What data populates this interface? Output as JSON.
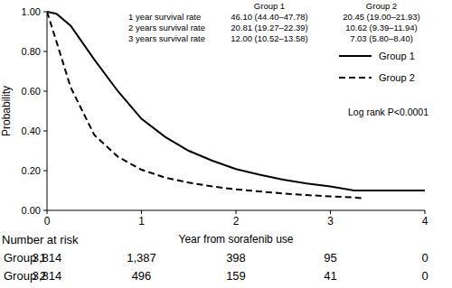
{
  "chart_data": {
    "type": "line",
    "x_label": "Year from sorafenib use",
    "y_label": "Probability",
    "annotation": "Log rank P<0.0001",
    "x": [
      0,
      0.1,
      0.25,
      0.5,
      0.75,
      1,
      1.25,
      1.5,
      1.75,
      2,
      2.25,
      2.5,
      2.75,
      3,
      3.25,
      3.35,
      3.5,
      4
    ],
    "series": [
      {
        "name": "Group 1",
        "color": "#000000",
        "line_style": "solid",
        "values": [
          1.0,
          0.99,
          0.93,
          0.76,
          0.6,
          0.461,
          0.37,
          0.3,
          0.25,
          0.208,
          0.18,
          0.155,
          0.135,
          0.12,
          0.1,
          0.1,
          0.1,
          0.1
        ]
      },
      {
        "name": "Group 2",
        "color": "#000000",
        "line_style": "dashed",
        "values": [
          1.0,
          0.85,
          0.62,
          0.38,
          0.27,
          0.2045,
          0.165,
          0.14,
          0.12,
          0.106,
          0.095,
          0.085,
          0.077,
          0.07,
          0.065,
          0.06,
          null,
          null
        ]
      }
    ],
    "xlim": [
      0,
      4
    ],
    "xticks": [
      0,
      1,
      2,
      3,
      4
    ],
    "ylim": [
      0,
      1
    ],
    "yticks": [
      {
        "value": 0,
        "label": "0.00"
      },
      {
        "value": 0.2,
        "label": "0.20"
      },
      {
        "value": 0.4,
        "label": "0.40"
      },
      {
        "value": 0.6,
        "label": "0.60"
      },
      {
        "value": 0.8,
        "label": "0.80"
      },
      {
        "value": 1,
        "label": "1.00"
      }
    ],
    "legend": "top-right",
    "survival_table": {
      "columns": [
        "Group 1",
        "Group 2"
      ],
      "rows": [
        {
          "label": "1 year survival rate",
          "values": [
            "46.10 (44.40–47.78)",
            "20.45 (19.00–21.93)"
          ]
        },
        {
          "label": "2 years survival rate",
          "values": [
            "20.81 (19.27–22.39)",
            "10.62 (9.39–11.94)"
          ]
        },
        {
          "label": "3 years survival rate",
          "values": [
            "12.00 (10.52–13.58)",
            "7.03 (5.80–8.40)"
          ]
        }
      ]
    },
    "risk_table": {
      "title": "Number at risk",
      "x": [
        0,
        1,
        2,
        3,
        4
      ],
      "rows": [
        {
          "name": "Group 1",
          "values": [
            "3,814",
            "1,387",
            "398",
            "95",
            "0"
          ]
        },
        {
          "name": "Group 2",
          "values": [
            "3,814",
            "496",
            "159",
            "41",
            "0"
          ]
        }
      ]
    }
  }
}
